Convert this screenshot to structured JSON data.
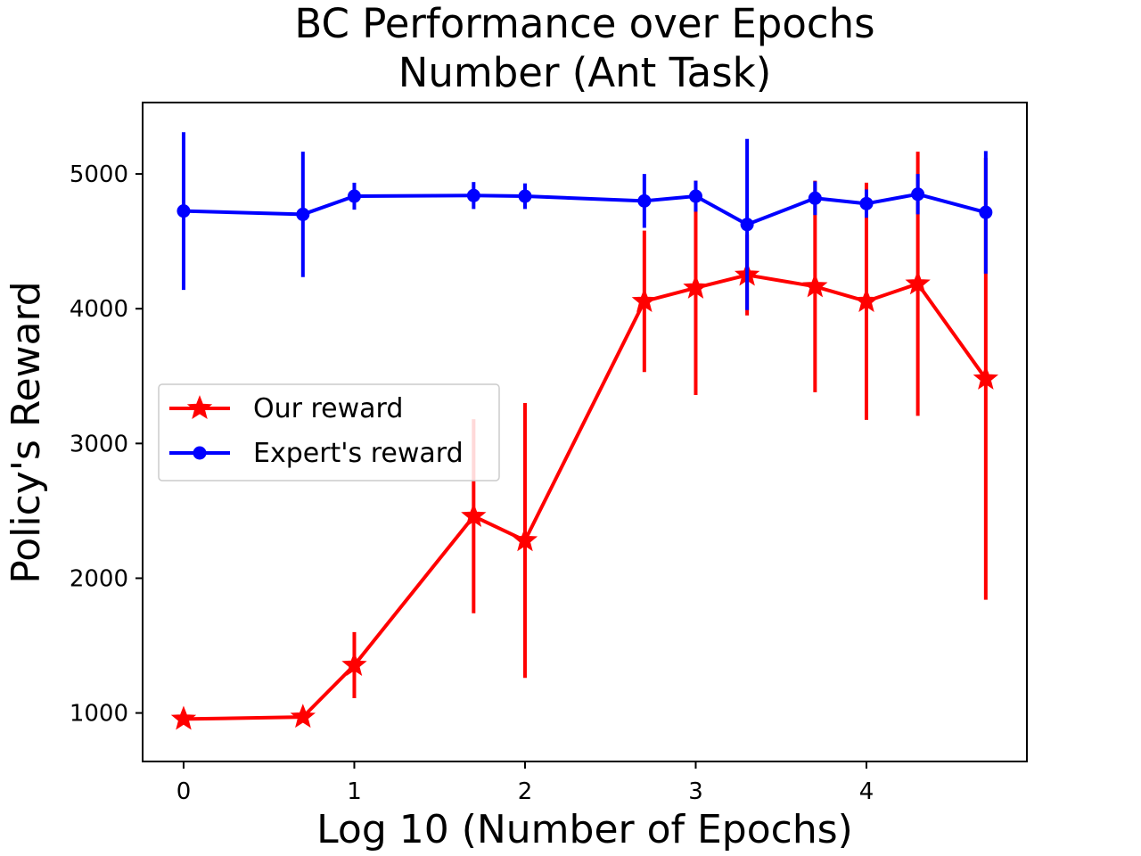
{
  "chart_data": {
    "type": "line",
    "title_lines": [
      "BC Performance over Epochs",
      "Number (Ant Task)"
    ],
    "xlabel": "Log 10 (Number of Epochs)",
    "ylabel": "Policy's Reward",
    "xlim": [
      -0.24,
      4.94
    ],
    "ylim": [
      640,
      5530
    ],
    "xticks": [
      0,
      1,
      2,
      3,
      4
    ],
    "yticks": [
      1000,
      2000,
      3000,
      4000,
      5000
    ],
    "grid": false,
    "legend_position": "center-left",
    "x": [
      0,
      0.699,
      1,
      1.699,
      2,
      2.699,
      3,
      3.301,
      3.699,
      4,
      4.301,
      4.699
    ],
    "series": [
      {
        "name": "Our reward",
        "color": "#ff0000",
        "marker": "star",
        "values": [
          955,
          970,
          1355,
          2460,
          2280,
          4055,
          4155,
          4250,
          4165,
          4055,
          4185,
          3480
        ],
        "errors": [
          20,
          20,
          245,
          720,
          1020,
          525,
          795,
          300,
          785,
          880,
          980,
          1640
        ]
      },
      {
        "name": "Expert's reward",
        "color": "#0000ff",
        "marker": "circle",
        "values": [
          4725,
          4700,
          4835,
          4840,
          4835,
          4800,
          4835,
          4625,
          4820,
          4780,
          4850,
          4715
        ],
        "errors": [
          585,
          465,
          100,
          100,
          95,
          200,
          115,
          635,
          125,
          105,
          150,
          455
        ]
      }
    ]
  }
}
